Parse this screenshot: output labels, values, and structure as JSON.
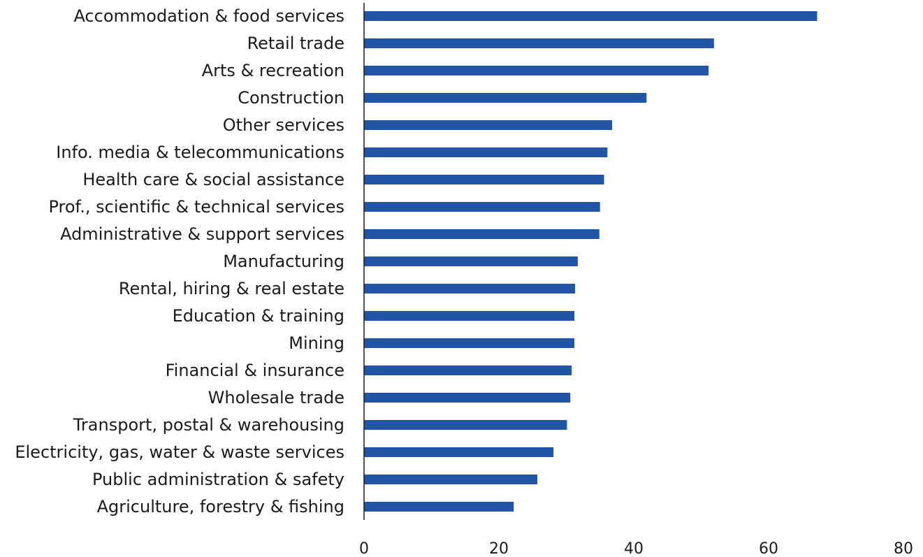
{
  "chart_data": {
    "type": "bar",
    "orientation": "horizontal",
    "categories": [
      "Accommodation & food services",
      "Retail trade",
      "Arts & recreation",
      "Construction",
      "Other services",
      "Info. media & telecommunications",
      "Health care & social assistance",
      "Prof., scientific & technical services",
      "Administrative & support services",
      "Manufacturing",
      "Rental, hiring & real estate",
      "Education & training",
      "Mining",
      "Financial & insurance",
      "Wholesale trade",
      "Transport, postal & warehousing",
      "Electricity, gas, water & waste services",
      "Public administration & safety",
      "Agriculture, forestry & fishing"
    ],
    "values": [
      67.2,
      51.9,
      51.1,
      41.9,
      36.8,
      36.1,
      35.6,
      35.0,
      34.9,
      31.7,
      31.3,
      31.2,
      31.2,
      30.8,
      30.6,
      30.1,
      28.1,
      25.7,
      22.2
    ],
    "title": "",
    "xlabel": "",
    "ylabel": "",
    "xlim": [
      0,
      80
    ],
    "xticks": [
      "0",
      "20",
      "40",
      "60",
      "80"
    ],
    "grid": false,
    "legend": "none",
    "colors": {
      "bar": "#2455a4",
      "axis": "#1a1a1a",
      "text": "#1a1a1a"
    }
  }
}
